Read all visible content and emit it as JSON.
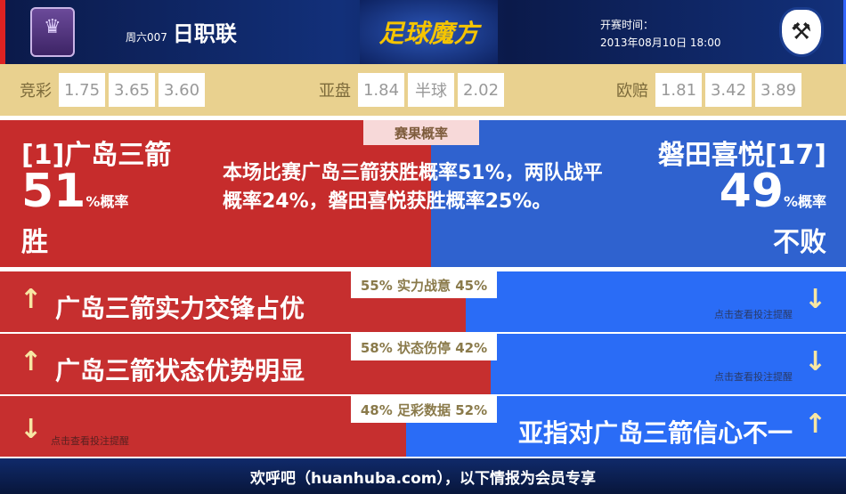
{
  "header": {
    "league_week": "周六007",
    "league": "日职联",
    "logo_text": "足球魔方",
    "kickoff_label": "开赛时间：",
    "kickoff_time": "2013年08月10日 18:00"
  },
  "odds": [
    {
      "label": "竞彩",
      "values": [
        "1.75",
        "3.65",
        "3.60"
      ]
    },
    {
      "label": "亚盘",
      "values": [
        "1.84",
        "半球",
        "2.02"
      ]
    },
    {
      "label": "欧赔",
      "values": [
        "1.81",
        "3.42",
        "3.89"
      ]
    }
  ],
  "probability": {
    "tab": "赛果概率",
    "home": {
      "name": "[1]广岛三箭",
      "pct": "51",
      "pct_suffix": "%概率",
      "result": "胜"
    },
    "away": {
      "name": "磐田喜悦[17]",
      "pct": "49",
      "pct_suffix": "%概率",
      "result": "不败"
    },
    "description": "本场比赛广岛三箭获胜概率51%，两队战平概率24%，磐田喜悦获胜概率25%。",
    "colors": {
      "home": "#c62c2c",
      "away": "#2f62cf"
    }
  },
  "rows": [
    {
      "home_pct": 55,
      "away_pct": 45,
      "badge": "55% 实力战意 45%",
      "headline": "广岛三箭实力交锋占优",
      "headline_side": "home",
      "tip": "点击查看投注提醒"
    },
    {
      "home_pct": 58,
      "away_pct": 42,
      "badge": "58% 状态伤停 42%",
      "headline": "广岛三箭状态优势明显",
      "headline_side": "home",
      "tip": "点击查看投注提醒"
    },
    {
      "home_pct": 48,
      "away_pct": 52,
      "badge": "48% 足彩数据 52%",
      "headline": "亚指对广岛三箭信心不一",
      "headline_side": "away",
      "tip": "点击查看投注提醒"
    }
  ],
  "footer": {
    "text": "欢呼吧（huanhuba.com），以下情报为会员专享"
  }
}
